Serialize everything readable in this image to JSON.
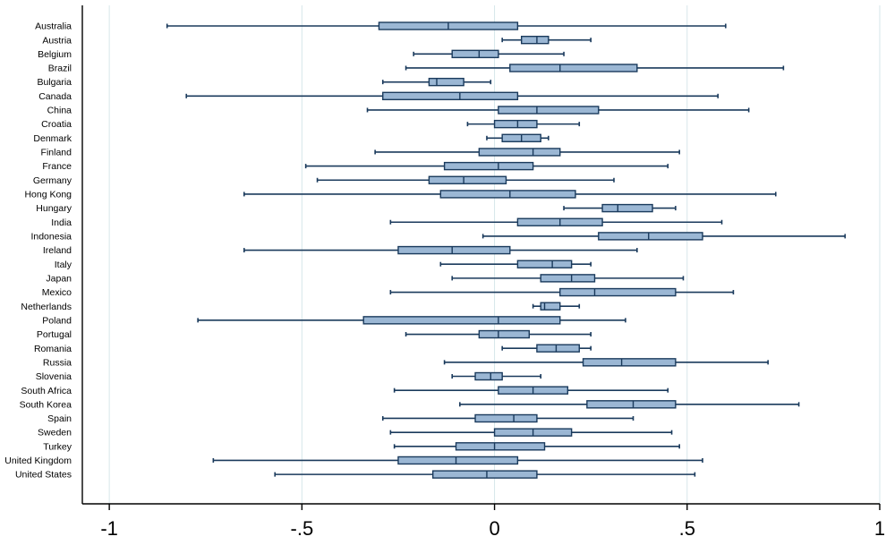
{
  "chart_data": {
    "type": "boxplot",
    "orientation": "horizontal",
    "title": "",
    "xlabel": "",
    "ylabel": "",
    "xlim": [
      -1.07,
      1.0
    ],
    "xticks": [
      -1,
      -0.5,
      0,
      0.5,
      1
    ],
    "xtick_labels": [
      "-1",
      "-.5",
      "0",
      ".5",
      "1"
    ],
    "grid": "vertical",
    "colors": {
      "box_fill": "#9bb7d4",
      "stroke": "#1a3a5c",
      "grid": "#d6e6ea",
      "axis": "#000000"
    },
    "categories": [
      "Australia",
      "Austria",
      "Belgium",
      "Brazil",
      "Bulgaria",
      "Canada",
      "China",
      "Croatia",
      "Denmark",
      "Finland",
      "France",
      "Germany",
      "Hong Kong",
      "Hungary",
      "India",
      "Indonesia",
      "Ireland",
      "Italy",
      "Japan",
      "Mexico",
      "Netherlands",
      "Poland",
      "Portugal",
      "Romania",
      "Russia",
      "Slovenia",
      "South Africa",
      "South Korea",
      "Spain",
      "Sweden",
      "Turkey",
      "United Kingdom",
      "United States"
    ],
    "series": [
      {
        "category": "Australia",
        "min": -0.85,
        "q1": -0.3,
        "median": -0.12,
        "q3": 0.06,
        "max": 0.6
      },
      {
        "category": "Austria",
        "min": 0.02,
        "q1": 0.07,
        "median": 0.11,
        "q3": 0.14,
        "max": 0.25
      },
      {
        "category": "Belgium",
        "min": -0.21,
        "q1": -0.11,
        "median": -0.04,
        "q3": 0.01,
        "max": 0.18
      },
      {
        "category": "Brazil",
        "min": -0.23,
        "q1": 0.04,
        "median": 0.17,
        "q3": 0.37,
        "max": 0.75
      },
      {
        "category": "Bulgaria",
        "min": -0.29,
        "q1": -0.17,
        "median": -0.15,
        "q3": -0.08,
        "max": -0.01
      },
      {
        "category": "Canada",
        "min": -0.8,
        "q1": -0.29,
        "median": -0.09,
        "q3": 0.06,
        "max": 0.58
      },
      {
        "category": "China",
        "min": -0.33,
        "q1": 0.01,
        "median": 0.11,
        "q3": 0.27,
        "max": 0.66
      },
      {
        "category": "Croatia",
        "min": -0.07,
        "q1": 0.0,
        "median": 0.06,
        "q3": 0.11,
        "max": 0.22
      },
      {
        "category": "Denmark",
        "min": -0.02,
        "q1": 0.02,
        "median": 0.07,
        "q3": 0.12,
        "max": 0.14
      },
      {
        "category": "Finland",
        "min": -0.31,
        "q1": -0.04,
        "median": 0.1,
        "q3": 0.17,
        "max": 0.48
      },
      {
        "category": "France",
        "min": -0.49,
        "q1": -0.13,
        "median": 0.01,
        "q3": 0.1,
        "max": 0.45
      },
      {
        "category": "Germany",
        "min": -0.46,
        "q1": -0.17,
        "median": -0.08,
        "q3": 0.03,
        "max": 0.31
      },
      {
        "category": "Hong Kong",
        "min": -0.65,
        "q1": -0.14,
        "median": 0.04,
        "q3": 0.21,
        "max": 0.73
      },
      {
        "category": "Hungary",
        "min": 0.18,
        "q1": 0.28,
        "median": 0.32,
        "q3": 0.41,
        "max": 0.47
      },
      {
        "category": "India",
        "min": -0.27,
        "q1": 0.06,
        "median": 0.17,
        "q3": 0.28,
        "max": 0.59
      },
      {
        "category": "Indonesia",
        "min": -0.03,
        "q1": 0.27,
        "median": 0.4,
        "q3": 0.54,
        "max": 0.91
      },
      {
        "category": "Ireland",
        "min": -0.65,
        "q1": -0.25,
        "median": -0.11,
        "q3": 0.04,
        "max": 0.37
      },
      {
        "category": "Italy",
        "min": -0.14,
        "q1": 0.06,
        "median": 0.15,
        "q3": 0.2,
        "max": 0.25
      },
      {
        "category": "Japan",
        "min": -0.11,
        "q1": 0.12,
        "median": 0.2,
        "q3": 0.26,
        "max": 0.49
      },
      {
        "category": "Mexico",
        "min": -0.27,
        "q1": 0.17,
        "median": 0.26,
        "q3": 0.47,
        "max": 0.62
      },
      {
        "category": "Netherlands",
        "min": 0.1,
        "q1": 0.12,
        "median": 0.13,
        "q3": 0.17,
        "max": 0.22
      },
      {
        "category": "Poland",
        "min": -0.77,
        "q1": -0.34,
        "median": 0.01,
        "q3": 0.17,
        "max": 0.34
      },
      {
        "category": "Portugal",
        "min": -0.23,
        "q1": -0.04,
        "median": 0.01,
        "q3": 0.09,
        "max": 0.25
      },
      {
        "category": "Romania",
        "min": 0.02,
        "q1": 0.11,
        "median": 0.16,
        "q3": 0.22,
        "max": 0.25
      },
      {
        "category": "Russia",
        "min": -0.13,
        "q1": 0.23,
        "median": 0.33,
        "q3": 0.47,
        "max": 0.71
      },
      {
        "category": "Slovenia",
        "min": -0.11,
        "q1": -0.05,
        "median": -0.01,
        "q3": 0.02,
        "max": 0.12
      },
      {
        "category": "South Africa",
        "min": -0.26,
        "q1": 0.01,
        "median": 0.1,
        "q3": 0.19,
        "max": 0.45
      },
      {
        "category": "South Korea",
        "min": -0.09,
        "q1": 0.24,
        "median": 0.36,
        "q3": 0.47,
        "max": 0.79
      },
      {
        "category": "Spain",
        "min": -0.29,
        "q1": -0.05,
        "median": 0.05,
        "q3": 0.11,
        "max": 0.36
      },
      {
        "category": "Sweden",
        "min": -0.27,
        "q1": 0.0,
        "median": 0.1,
        "q3": 0.2,
        "max": 0.46
      },
      {
        "category": "Turkey",
        "min": -0.26,
        "q1": -0.1,
        "median": 0.0,
        "q3": 0.13,
        "max": 0.48
      },
      {
        "category": "United Kingdom",
        "min": -0.73,
        "q1": -0.25,
        "median": -0.1,
        "q3": 0.06,
        "max": 0.54
      },
      {
        "category": "United States",
        "min": -0.57,
        "q1": -0.16,
        "median": -0.02,
        "q3": 0.11,
        "max": 0.52
      }
    ]
  }
}
